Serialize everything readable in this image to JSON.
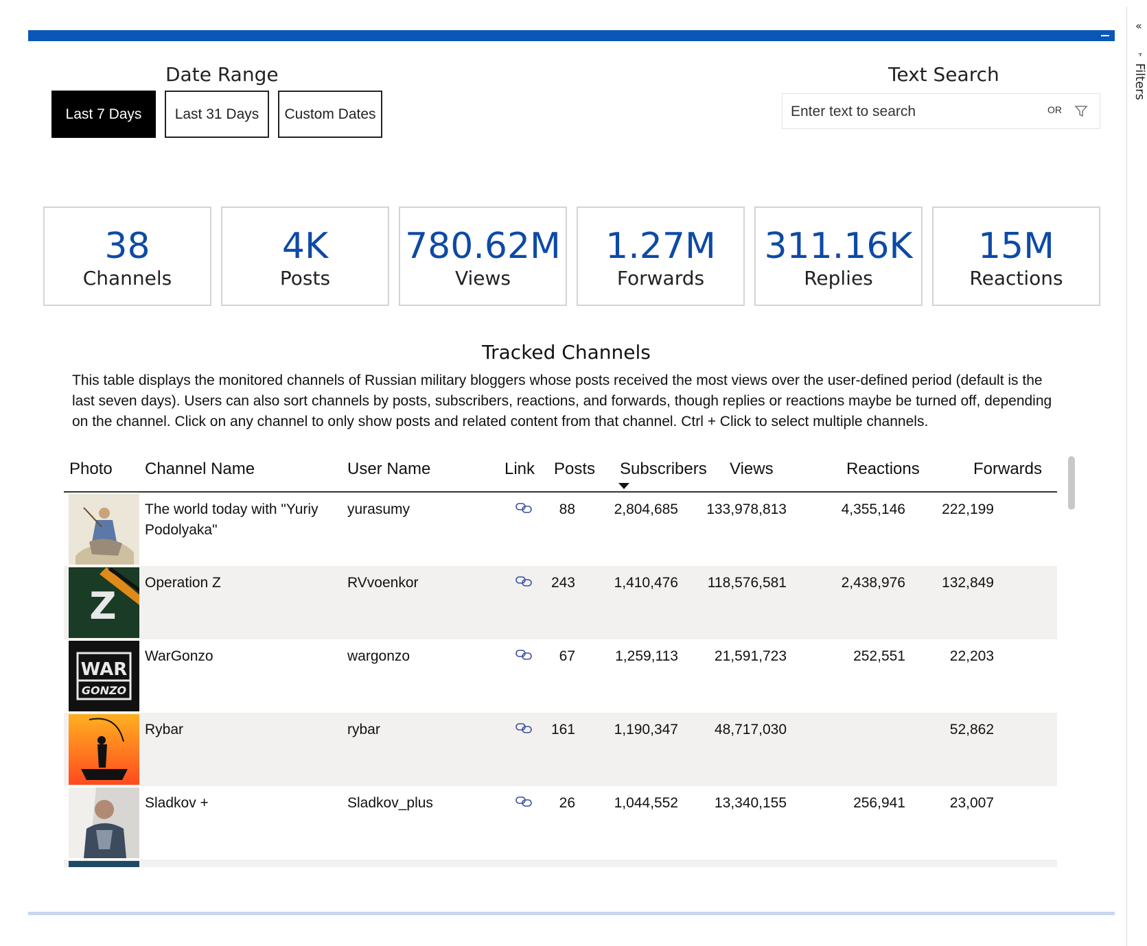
{
  "filters_pane": {
    "label": "Filters",
    "collapse_icon": "chevron-double-left-icon"
  },
  "date_range": {
    "title": "Date Range",
    "buttons": [
      "Last 7 Days",
      "Last 31 Days",
      "Custom Dates"
    ],
    "selected": "Last 7 Days"
  },
  "text_search": {
    "title": "Text Search",
    "placeholder": "Enter text to search",
    "or_label": "OR"
  },
  "kpis": [
    {
      "value": "38",
      "label": "Channels"
    },
    {
      "value": "4K",
      "label": "Posts"
    },
    {
      "value": "780.62M",
      "label": "Views"
    },
    {
      "value": "1.27M",
      "label": "Forwards"
    },
    {
      "value": "311.16K",
      "label": "Replies"
    },
    {
      "value": "15M",
      "label": "Reactions"
    }
  ],
  "tracked": {
    "title": "Tracked Channels",
    "description": "This table displays the monitored channels of Russian military bloggers whose posts received the most views over the user-defined period (default is the last seven days). Users can also sort channels by posts, subscribers, reactions, and forwards, though replies or reactions maybe be turned off, depending on the channel. Click on any channel to only show posts and related content from that channel. Ctrl + Click to select multiple channels."
  },
  "table": {
    "columns": [
      "Photo",
      "Channel Name",
      "User Name",
      "Link",
      "Posts",
      "Subscribers",
      "Views",
      "Reactions",
      "Forwards"
    ],
    "sorted_by": "Subscribers",
    "rows": [
      {
        "channel": "The world today with \"Yuriy Podolyaka\"",
        "user": "yurasumy",
        "posts": "88",
        "subscribers": "2,804,685",
        "views": "133,978,813",
        "reactions": "4,355,146",
        "forwards": "222,199"
      },
      {
        "channel": "Operation Z",
        "user": "RVvoenkor",
        "posts": "243",
        "subscribers": "1,410,476",
        "views": "118,576,581",
        "reactions": "2,438,976",
        "forwards": "132,849"
      },
      {
        "channel": "WarGonzo",
        "user": "wargonzo",
        "posts": "67",
        "subscribers": "1,259,113",
        "views": "21,591,723",
        "reactions": "252,551",
        "forwards": "22,203"
      },
      {
        "channel": "Rybar",
        "user": "rybar",
        "posts": "161",
        "subscribers": "1,190,347",
        "views": "48,717,030",
        "reactions": "",
        "forwards": "52,862"
      },
      {
        "channel": "Sladkov +",
        "user": "Sladkov_plus",
        "posts": "26",
        "subscribers": "1,044,552",
        "views": "13,340,155",
        "reactions": "256,941",
        "forwards": "23,007"
      }
    ]
  },
  "logos": {
    "wargonzo_top": "WAR",
    "wargonzo_bottom": "GONZO",
    "operation_z": "Z"
  },
  "colors": {
    "accent": "#0a57b8",
    "kpi_value": "#0d4aa6",
    "row_alt": "#f2f1ef"
  }
}
